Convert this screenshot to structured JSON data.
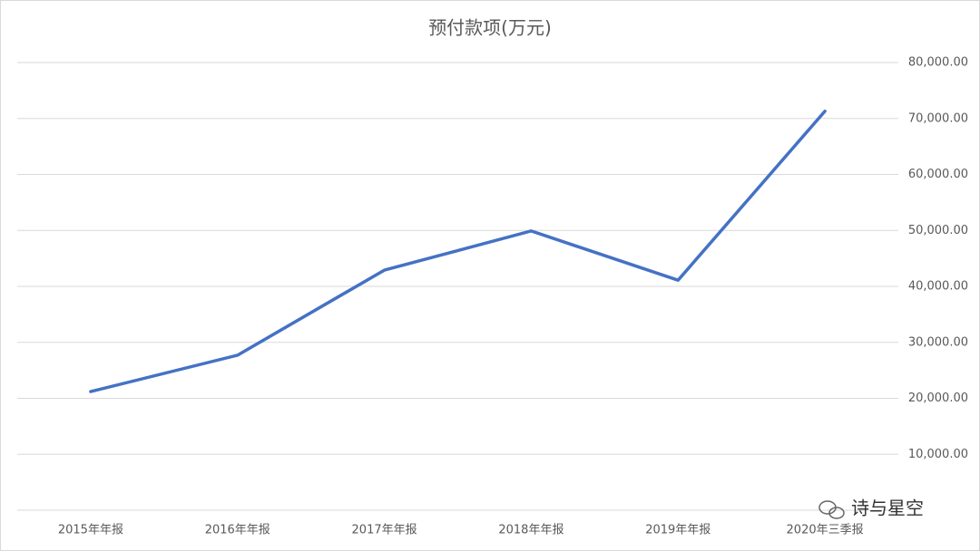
{
  "chart_data": {
    "type": "line",
    "title": "预付款项(万元)",
    "categories": [
      "2015年年报",
      "2016年年报",
      "2017年年报",
      "2018年年报",
      "2019年年报",
      "2020年三季报"
    ],
    "series": [
      {
        "name": "预付款项",
        "color": "#4472c4",
        "values": [
          21200,
          27700,
          42900,
          49900,
          41100,
          71300
        ]
      }
    ],
    "ylim": [
      0,
      80000
    ],
    "yticks": [
      {
        "value": 10000,
        "label": "10,000.00"
      },
      {
        "value": 20000,
        "label": "20,000.00"
      },
      {
        "value": 30000,
        "label": "30,000.00"
      },
      {
        "value": 40000,
        "label": "40,000.00"
      },
      {
        "value": 50000,
        "label": "50,000.00"
      },
      {
        "value": 60000,
        "label": "60,000.00"
      },
      {
        "value": 70000,
        "label": "70,000.00"
      },
      {
        "value": 80000,
        "label": "80,000.00"
      }
    ],
    "grid": true,
    "watermark": "诗与星空"
  }
}
